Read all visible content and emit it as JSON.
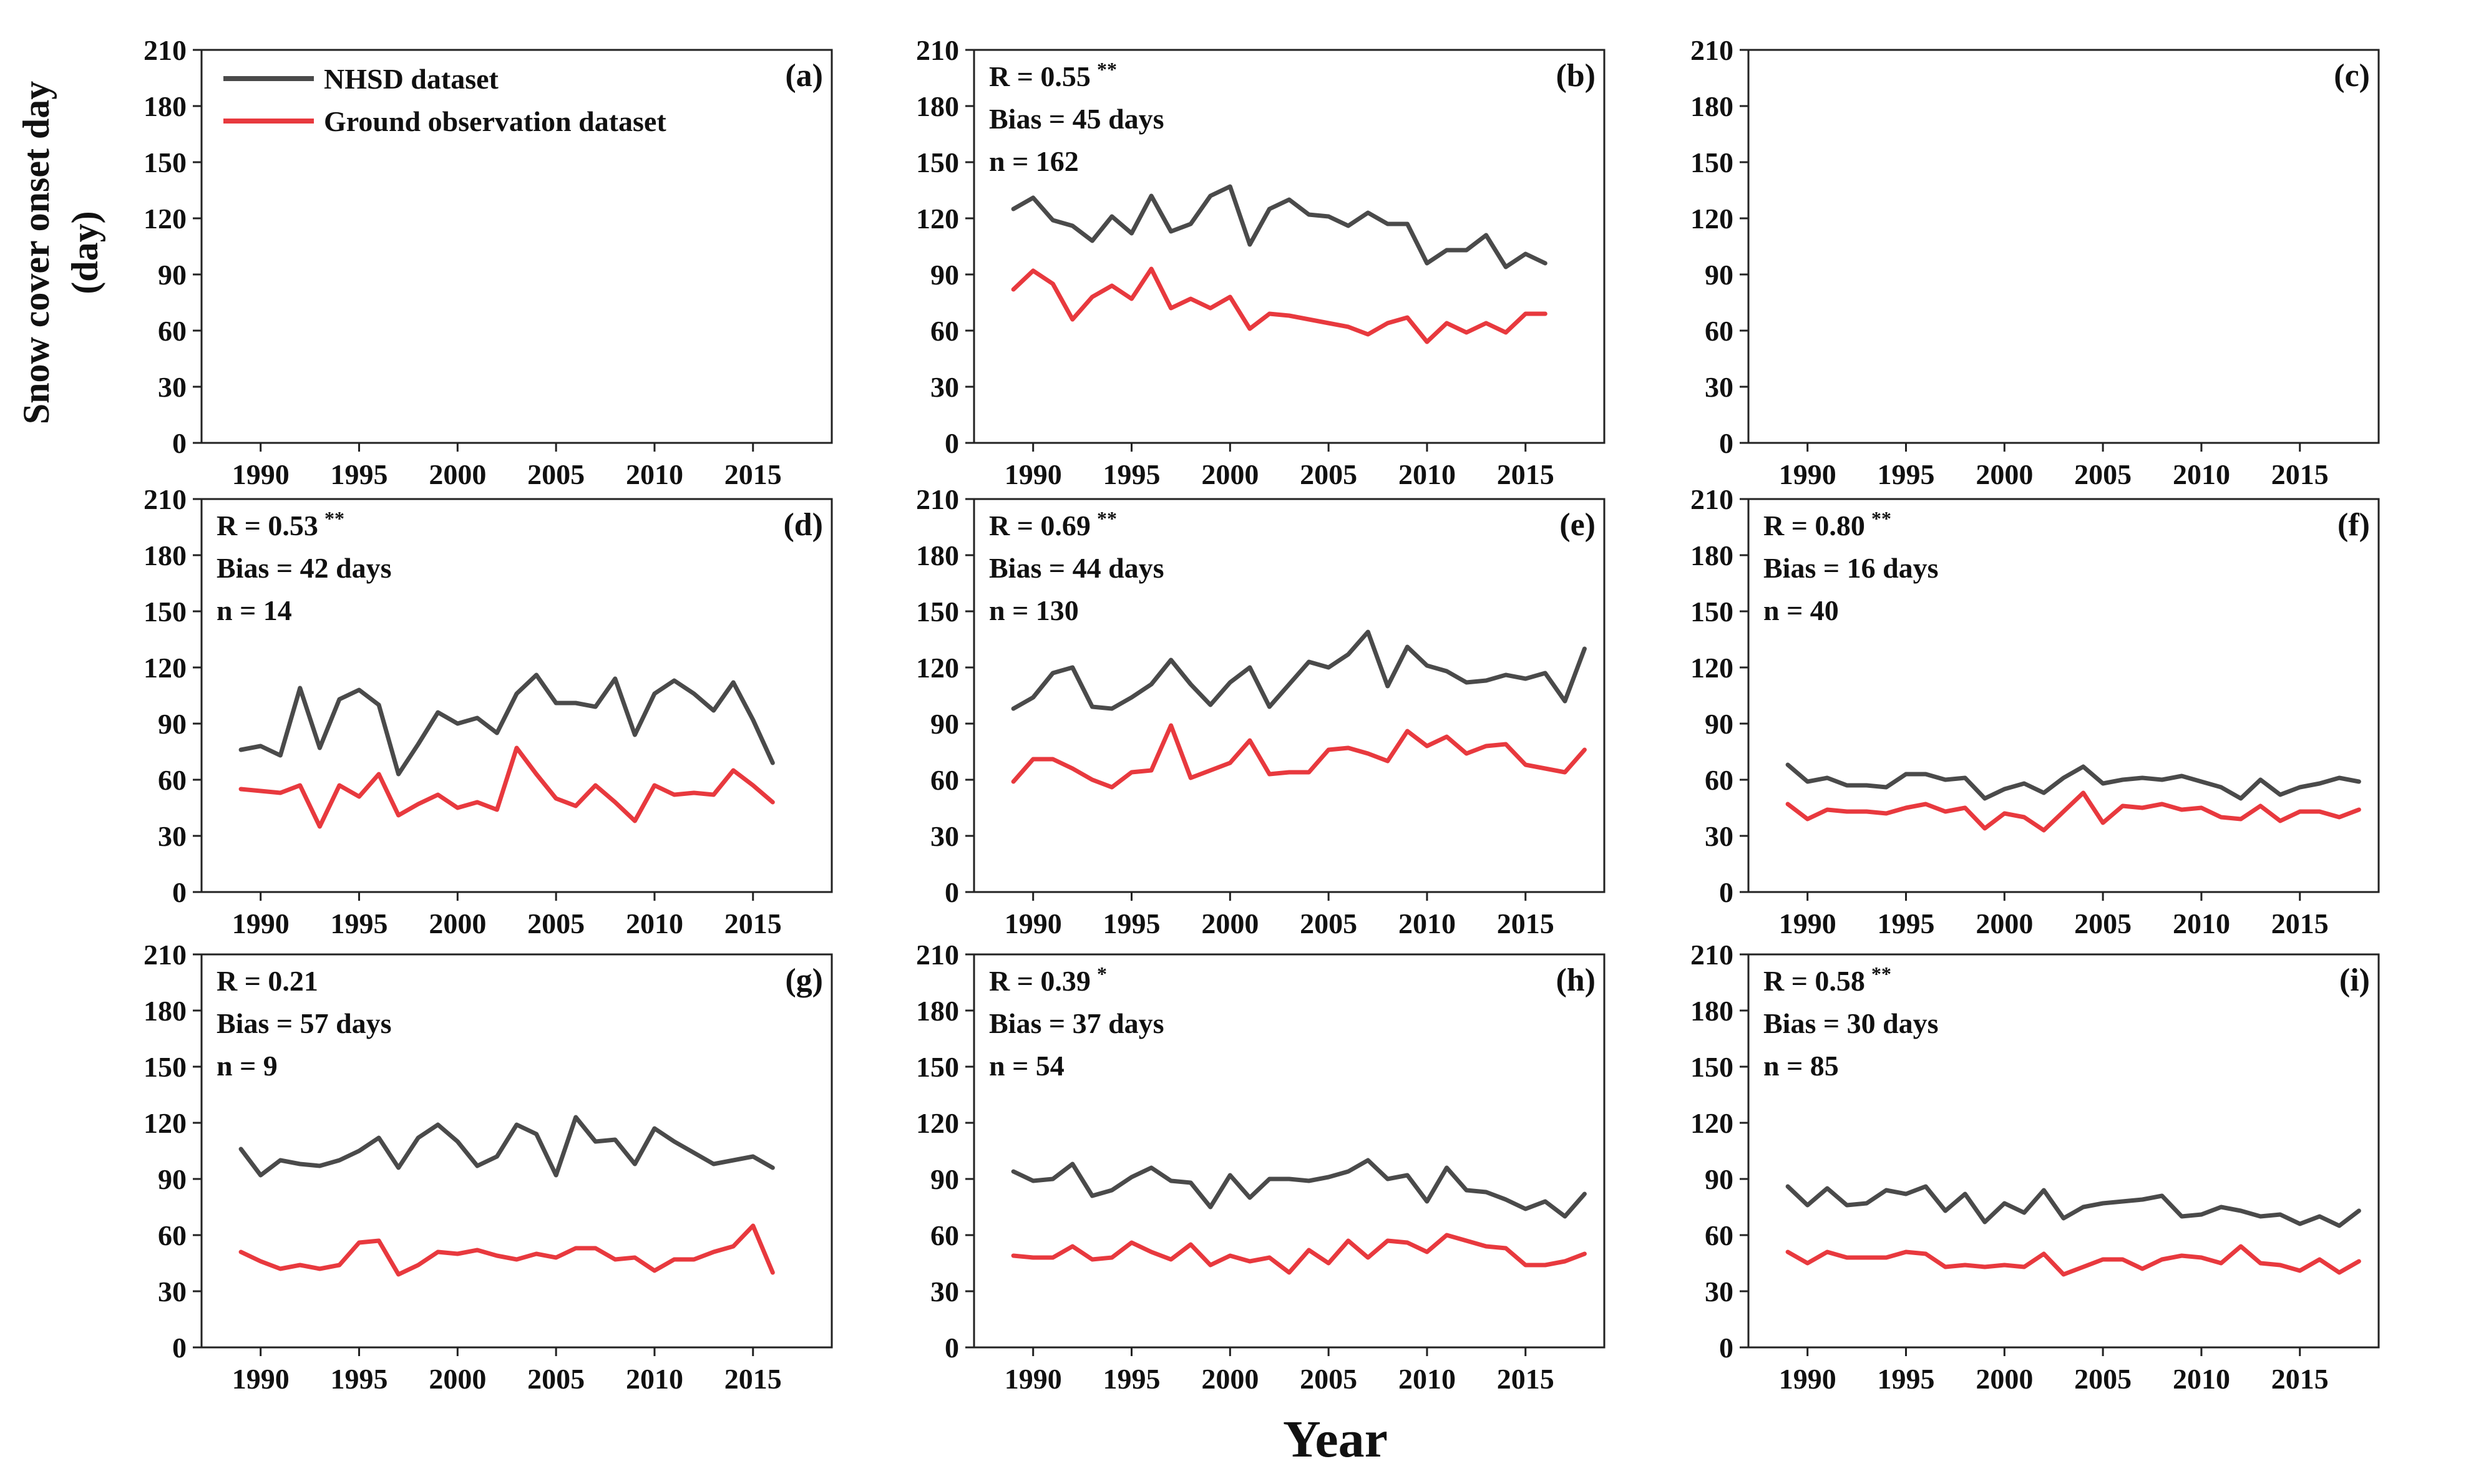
{
  "figure": {
    "ylabel": "Snow cover onset day",
    "ylabel_unit": "(day)",
    "xlabel": "Year",
    "legend": [
      {
        "name": "NHSD dataset",
        "color": "#4a4a4a"
      },
      {
        "name": "Ground observation dataset",
        "color": "#e8393e"
      }
    ]
  },
  "chart_data": [
    {
      "type": "line",
      "panel": "(a)",
      "xlim": [
        1987,
        2019
      ],
      "ylim": [
        0,
        210
      ],
      "xticks": [
        1990,
        1995,
        2000,
        2005,
        2010,
        2015
      ],
      "yticks": [
        0,
        30,
        60,
        90,
        120,
        150,
        180,
        210
      ],
      "stats": null,
      "series": []
    },
    {
      "type": "line",
      "panel": "(b)",
      "xlim": [
        1987,
        2019
      ],
      "ylim": [
        0,
        210
      ],
      "xticks": [
        1990,
        1995,
        2000,
        2005,
        2010,
        2015
      ],
      "yticks": [
        0,
        30,
        60,
        90,
        120,
        150,
        180,
        210
      ],
      "stats": {
        "r": "R = 0.55",
        "sig": "**",
        "bias": "Bias = 45  days",
        "n": "n = 162"
      },
      "x_start": 1989,
      "series": [
        {
          "name": "NHSD dataset",
          "values": [
            125,
            131,
            119,
            116,
            108,
            121,
            112,
            132,
            113,
            117,
            132,
            137,
            106,
            125,
            130,
            122,
            121,
            116,
            123,
            117,
            117,
            96,
            103,
            103,
            111,
            94,
            101,
            96
          ]
        },
        {
          "name": "Ground observation dataset",
          "values": [
            82,
            92,
            85,
            66,
            78,
            84,
            77,
            93,
            72,
            77,
            72,
            78,
            61,
            69,
            68,
            66,
            64,
            62,
            58,
            64,
            67,
            54,
            64,
            59,
            64,
            59,
            69,
            69
          ]
        }
      ]
    },
    {
      "type": "line",
      "panel": "(c)",
      "xlim": [
        1987,
        2019
      ],
      "ylim": [
        0,
        210
      ],
      "xticks": [
        1990,
        1995,
        2000,
        2005,
        2010,
        2015
      ],
      "yticks": [
        0,
        30,
        60,
        90,
        120,
        150,
        180,
        210
      ],
      "stats": null,
      "series": []
    },
    {
      "type": "line",
      "panel": "(d)",
      "xlim": [
        1987,
        2019
      ],
      "ylim": [
        0,
        210
      ],
      "xticks": [
        1990,
        1995,
        2000,
        2005,
        2010,
        2015
      ],
      "yticks": [
        0,
        30,
        60,
        90,
        120,
        150,
        180,
        210
      ],
      "stats": {
        "r": "R = 0.53",
        "sig": "**",
        "bias": "Bias = 42 days",
        "n": "n = 14"
      },
      "x_start": 1989,
      "series": [
        {
          "name": "NHSD dataset",
          "values": [
            76,
            78,
            73,
            109,
            77,
            103,
            108,
            100,
            63,
            79,
            96,
            90,
            93,
            85,
            106,
            116,
            101,
            101,
            99,
            114,
            84,
            106,
            113,
            106,
            97,
            112,
            92,
            69
          ]
        },
        {
          "name": "Ground observation dataset",
          "values": [
            55,
            54,
            53,
            57,
            35,
            57,
            51,
            63,
            41,
            47,
            52,
            45,
            48,
            44,
            77,
            63,
            50,
            46,
            57,
            48,
            38,
            57,
            52,
            53,
            52,
            65,
            57,
            48
          ]
        }
      ]
    },
    {
      "type": "line",
      "panel": "(e)",
      "xlim": [
        1987,
        2019
      ],
      "ylim": [
        0,
        210
      ],
      "xticks": [
        1990,
        1995,
        2000,
        2005,
        2010,
        2015
      ],
      "yticks": [
        0,
        30,
        60,
        90,
        120,
        150,
        180,
        210
      ],
      "stats": {
        "r": "R = 0.69",
        "sig": "**",
        "bias": "Bias = 44 days",
        "n": "n = 130"
      },
      "x_start": 1989,
      "series": [
        {
          "name": "NHSD dataset",
          "values": [
            98,
            104,
            117,
            120,
            99,
            98,
            104,
            111,
            124,
            111,
            100,
            112,
            120,
            99,
            111,
            123,
            120,
            127,
            139,
            110,
            131,
            121,
            118,
            112,
            113,
            116,
            114,
            117,
            102,
            130
          ]
        },
        {
          "name": "Ground observation dataset",
          "values": [
            59,
            71,
            71,
            66,
            60,
            56,
            64,
            65,
            89,
            61,
            65,
            69,
            81,
            63,
            64,
            64,
            76,
            77,
            74,
            70,
            86,
            78,
            83,
            74,
            78,
            79,
            68,
            66,
            64,
            76
          ]
        }
      ]
    },
    {
      "type": "line",
      "panel": "(f)",
      "xlim": [
        1987,
        2019
      ],
      "ylim": [
        0,
        210
      ],
      "xticks": [
        1990,
        1995,
        2000,
        2005,
        2010,
        2015
      ],
      "yticks": [
        0,
        30,
        60,
        90,
        120,
        150,
        180,
        210
      ],
      "stats": {
        "r": "R = 0.80",
        "sig": "**",
        "bias": "Bias = 16 days",
        "n": "n = 40"
      },
      "x_start": 1989,
      "series": [
        {
          "name": "NHSD dataset",
          "values": [
            68,
            59,
            61,
            57,
            57,
            56,
            63,
            63,
            60,
            61,
            50,
            55,
            58,
            53,
            61,
            67,
            58,
            60,
            61,
            60,
            62,
            59,
            56,
            50,
            60,
            52,
            56,
            58,
            61,
            59
          ]
        },
        {
          "name": "Ground observation dataset",
          "values": [
            47,
            39,
            44,
            43,
            43,
            42,
            45,
            47,
            43,
            45,
            34,
            42,
            40,
            33,
            43,
            53,
            37,
            46,
            45,
            47,
            44,
            45,
            40,
            39,
            46,
            38,
            43,
            43,
            40,
            44
          ]
        }
      ]
    },
    {
      "type": "line",
      "panel": "(g)",
      "xlim": [
        1987,
        2019
      ],
      "ylim": [
        0,
        210
      ],
      "xticks": [
        1990,
        1995,
        2000,
        2005,
        2010,
        2015
      ],
      "yticks": [
        0,
        30,
        60,
        90,
        120,
        150,
        180,
        210
      ],
      "stats": {
        "r": "R = 0.21",
        "sig": "",
        "bias": "Bias = 57 days",
        "n": "n = 9"
      },
      "x_start": 1989,
      "series": [
        {
          "name": "NHSD dataset",
          "values": [
            106,
            92,
            100,
            98,
            97,
            100,
            105,
            112,
            96,
            112,
            119,
            110,
            97,
            102,
            119,
            114,
            92,
            123,
            110,
            111,
            98,
            117,
            110,
            104,
            98,
            100,
            102,
            96
          ]
        },
        {
          "name": "Ground observation dataset",
          "values": [
            51,
            46,
            42,
            44,
            42,
            44,
            56,
            57,
            39,
            44,
            51,
            50,
            52,
            49,
            47,
            50,
            48,
            53,
            53,
            47,
            48,
            41,
            47,
            47,
            51,
            54,
            65,
            40
          ]
        }
      ]
    },
    {
      "type": "line",
      "panel": "(h)",
      "xlim": [
        1987,
        2019
      ],
      "ylim": [
        0,
        210
      ],
      "xticks": [
        1990,
        1995,
        2000,
        2005,
        2010,
        2015
      ],
      "yticks": [
        0,
        30,
        60,
        90,
        120,
        150,
        180,
        210
      ],
      "stats": {
        "r": "R = 0.39",
        "sig": "*",
        "bias": "Bias = 37 days",
        "n": "n = 54"
      },
      "x_start": 1989,
      "series": [
        {
          "name": "NHSD dataset",
          "values": [
            94,
            89,
            90,
            98,
            81,
            84,
            91,
            96,
            89,
            88,
            75,
            92,
            80,
            90,
            90,
            89,
            91,
            94,
            100,
            90,
            92,
            78,
            96,
            84,
            83,
            79,
            74,
            78,
            70,
            82
          ]
        },
        {
          "name": "Ground observation dataset",
          "values": [
            49,
            48,
            48,
            54,
            47,
            48,
            56,
            51,
            47,
            55,
            44,
            49,
            46,
            48,
            40,
            52,
            45,
            57,
            48,
            57,
            56,
            51,
            60,
            57,
            54,
            53,
            44,
            44,
            46,
            50
          ]
        }
      ]
    },
    {
      "type": "line",
      "panel": "(i)",
      "xlim": [
        1987,
        2019
      ],
      "ylim": [
        0,
        210
      ],
      "xticks": [
        1990,
        1995,
        2000,
        2005,
        2010,
        2015
      ],
      "yticks": [
        0,
        30,
        60,
        90,
        120,
        150,
        180,
        210
      ],
      "stats": {
        "r": "R = 0.58",
        "sig": "**",
        "bias": "Bias = 30 days",
        "n": "n = 85"
      },
      "x_start": 1989,
      "series": [
        {
          "name": "NHSD dataset",
          "values": [
            86,
            76,
            85,
            76,
            77,
            84,
            82,
            86,
            73,
            82,
            67,
            77,
            72,
            84,
            69,
            75,
            77,
            78,
            79,
            81,
            70,
            71,
            75,
            73,
            70,
            71,
            66,
            70,
            65,
            73
          ]
        },
        {
          "name": "Ground observation dataset",
          "values": [
            51,
            45,
            51,
            48,
            48,
            48,
            51,
            50,
            43,
            44,
            43,
            44,
            43,
            50,
            39,
            43,
            47,
            47,
            42,
            47,
            49,
            48,
            45,
            54,
            45,
            44,
            41,
            47,
            40,
            46
          ]
        }
      ]
    }
  ]
}
